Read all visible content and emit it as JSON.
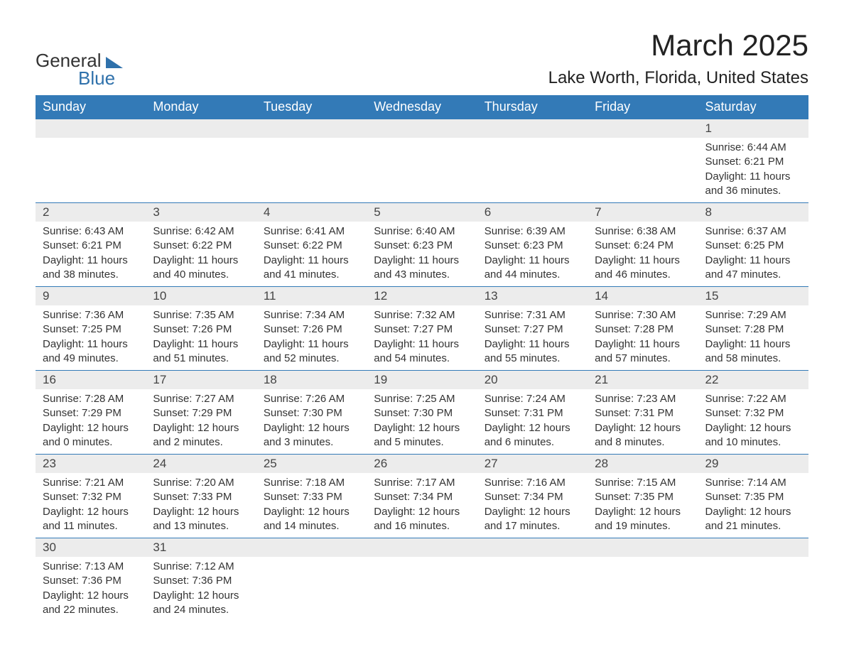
{
  "brand": {
    "word1": "General",
    "word2": "Blue"
  },
  "title": {
    "month": "March 2025",
    "location": "Lake Worth, Florida, United States"
  },
  "colors": {
    "header_bg": "#337ab7",
    "header_fg": "#ffffff",
    "daynum_bg": "#ececec",
    "text": "#333333",
    "brand_blue": "#2f71ab"
  },
  "dayNames": [
    "Sunday",
    "Monday",
    "Tuesday",
    "Wednesday",
    "Thursday",
    "Friday",
    "Saturday"
  ],
  "weeks": [
    [
      null,
      null,
      null,
      null,
      null,
      null,
      {
        "n": "1",
        "sunrise": "6:44 AM",
        "sunset": "6:21 PM",
        "dl_h": "11",
        "dl_m": "36"
      }
    ],
    [
      {
        "n": "2",
        "sunrise": "6:43 AM",
        "sunset": "6:21 PM",
        "dl_h": "11",
        "dl_m": "38"
      },
      {
        "n": "3",
        "sunrise": "6:42 AM",
        "sunset": "6:22 PM",
        "dl_h": "11",
        "dl_m": "40"
      },
      {
        "n": "4",
        "sunrise": "6:41 AM",
        "sunset": "6:22 PM",
        "dl_h": "11",
        "dl_m": "41"
      },
      {
        "n": "5",
        "sunrise": "6:40 AM",
        "sunset": "6:23 PM",
        "dl_h": "11",
        "dl_m": "43"
      },
      {
        "n": "6",
        "sunrise": "6:39 AM",
        "sunset": "6:23 PM",
        "dl_h": "11",
        "dl_m": "44"
      },
      {
        "n": "7",
        "sunrise": "6:38 AM",
        "sunset": "6:24 PM",
        "dl_h": "11",
        "dl_m": "46"
      },
      {
        "n": "8",
        "sunrise": "6:37 AM",
        "sunset": "6:25 PM",
        "dl_h": "11",
        "dl_m": "47"
      }
    ],
    [
      {
        "n": "9",
        "sunrise": "7:36 AM",
        "sunset": "7:25 PM",
        "dl_h": "11",
        "dl_m": "49"
      },
      {
        "n": "10",
        "sunrise": "7:35 AM",
        "sunset": "7:26 PM",
        "dl_h": "11",
        "dl_m": "51"
      },
      {
        "n": "11",
        "sunrise": "7:34 AM",
        "sunset": "7:26 PM",
        "dl_h": "11",
        "dl_m": "52"
      },
      {
        "n": "12",
        "sunrise": "7:32 AM",
        "sunset": "7:27 PM",
        "dl_h": "11",
        "dl_m": "54"
      },
      {
        "n": "13",
        "sunrise": "7:31 AM",
        "sunset": "7:27 PM",
        "dl_h": "11",
        "dl_m": "55"
      },
      {
        "n": "14",
        "sunrise": "7:30 AM",
        "sunset": "7:28 PM",
        "dl_h": "11",
        "dl_m": "57"
      },
      {
        "n": "15",
        "sunrise": "7:29 AM",
        "sunset": "7:28 PM",
        "dl_h": "11",
        "dl_m": "58"
      }
    ],
    [
      {
        "n": "16",
        "sunrise": "7:28 AM",
        "sunset": "7:29 PM",
        "dl_h": "12",
        "dl_m": "0"
      },
      {
        "n": "17",
        "sunrise": "7:27 AM",
        "sunset": "7:29 PM",
        "dl_h": "12",
        "dl_m": "2"
      },
      {
        "n": "18",
        "sunrise": "7:26 AM",
        "sunset": "7:30 PM",
        "dl_h": "12",
        "dl_m": "3"
      },
      {
        "n": "19",
        "sunrise": "7:25 AM",
        "sunset": "7:30 PM",
        "dl_h": "12",
        "dl_m": "5"
      },
      {
        "n": "20",
        "sunrise": "7:24 AM",
        "sunset": "7:31 PM",
        "dl_h": "12",
        "dl_m": "6"
      },
      {
        "n": "21",
        "sunrise": "7:23 AM",
        "sunset": "7:31 PM",
        "dl_h": "12",
        "dl_m": "8"
      },
      {
        "n": "22",
        "sunrise": "7:22 AM",
        "sunset": "7:32 PM",
        "dl_h": "12",
        "dl_m": "10"
      }
    ],
    [
      {
        "n": "23",
        "sunrise": "7:21 AM",
        "sunset": "7:32 PM",
        "dl_h": "12",
        "dl_m": "11"
      },
      {
        "n": "24",
        "sunrise": "7:20 AM",
        "sunset": "7:33 PM",
        "dl_h": "12",
        "dl_m": "13"
      },
      {
        "n": "25",
        "sunrise": "7:18 AM",
        "sunset": "7:33 PM",
        "dl_h": "12",
        "dl_m": "14"
      },
      {
        "n": "26",
        "sunrise": "7:17 AM",
        "sunset": "7:34 PM",
        "dl_h": "12",
        "dl_m": "16"
      },
      {
        "n": "27",
        "sunrise": "7:16 AM",
        "sunset": "7:34 PM",
        "dl_h": "12",
        "dl_m": "17"
      },
      {
        "n": "28",
        "sunrise": "7:15 AM",
        "sunset": "7:35 PM",
        "dl_h": "12",
        "dl_m": "19"
      },
      {
        "n": "29",
        "sunrise": "7:14 AM",
        "sunset": "7:35 PM",
        "dl_h": "12",
        "dl_m": "21"
      }
    ],
    [
      {
        "n": "30",
        "sunrise": "7:13 AM",
        "sunset": "7:36 PM",
        "dl_h": "12",
        "dl_m": "22"
      },
      {
        "n": "31",
        "sunrise": "7:12 AM",
        "sunset": "7:36 PM",
        "dl_h": "12",
        "dl_m": "24"
      },
      null,
      null,
      null,
      null,
      null
    ]
  ],
  "labels": {
    "sunrise": "Sunrise: ",
    "sunset": "Sunset: ",
    "daylight_pre": "Daylight: ",
    "hours_word": " hours",
    "and_word": "and ",
    "minutes_word": " minutes."
  }
}
